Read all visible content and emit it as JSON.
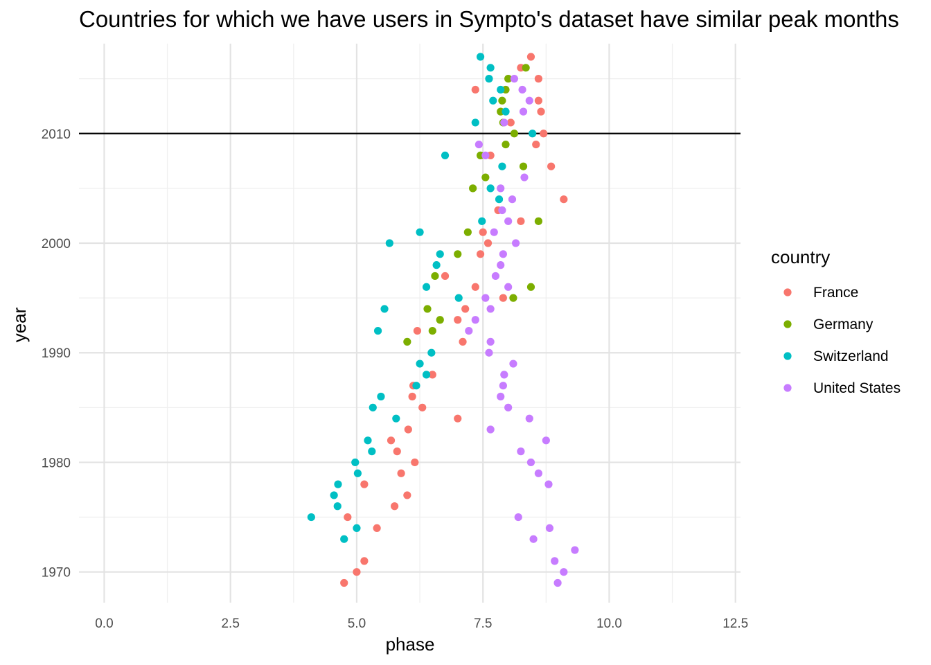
{
  "chart_data": {
    "type": "scatter",
    "title": "Countries for which we have users in Sympto's dataset have similar peak months",
    "xlabel": "phase",
    "ylabel": "year",
    "xlim": [
      -0.5,
      12.6
    ],
    "ylim": [
      1967.2,
      2018.2
    ],
    "x_ticks": [
      "0.0",
      "2.5",
      "5.0",
      "7.5",
      "10.0",
      "12.5"
    ],
    "x_tick_values": [
      0,
      2.5,
      5,
      7.5,
      10,
      12.5
    ],
    "y_ticks": [
      "1970",
      "1980",
      "1990",
      "2000",
      "2010"
    ],
    "y_tick_values": [
      1970,
      1980,
      1990,
      2000,
      2010
    ],
    "grid": true,
    "reference_line": {
      "orientation": "horizontal",
      "y": 2010,
      "color": "#000000"
    },
    "legend": {
      "title": "country",
      "position": "right"
    },
    "series": [
      {
        "name": "France",
        "color": "#F8766D",
        "points": [
          [
            4.75,
            1969
          ],
          [
            5.0,
            1970
          ],
          [
            5.15,
            1971
          ],
          [
            5.4,
            1974
          ],
          [
            4.82,
            1975
          ],
          [
            5.75,
            1976
          ],
          [
            6.0,
            1977
          ],
          [
            5.15,
            1978
          ],
          [
            5.88,
            1979
          ],
          [
            6.15,
            1980
          ],
          [
            5.8,
            1981
          ],
          [
            5.68,
            1982
          ],
          [
            6.02,
            1983
          ],
          [
            7.0,
            1984
          ],
          [
            6.3,
            1985
          ],
          [
            6.1,
            1986
          ],
          [
            6.12,
            1987
          ],
          [
            6.5,
            1988
          ],
          [
            7.1,
            1991
          ],
          [
            6.2,
            1992
          ],
          [
            7.0,
            1993
          ],
          [
            7.15,
            1994
          ],
          [
            7.9,
            1995
          ],
          [
            7.35,
            1996
          ],
          [
            6.75,
            1997
          ],
          [
            7.45,
            1999
          ],
          [
            7.6,
            2000
          ],
          [
            7.5,
            2001
          ],
          [
            8.25,
            2002
          ],
          [
            7.8,
            2003
          ],
          [
            9.1,
            2004
          ],
          [
            8.85,
            2007
          ],
          [
            7.65,
            2008
          ],
          [
            8.55,
            2009
          ],
          [
            8.7,
            2010
          ],
          [
            8.05,
            2011
          ],
          [
            8.65,
            2012
          ],
          [
            8.6,
            2013
          ],
          [
            7.35,
            2014
          ],
          [
            8.6,
            2015
          ],
          [
            8.25,
            2016
          ],
          [
            8.45,
            2017
          ]
        ]
      },
      {
        "name": "Germany",
        "color": "#7CAE00",
        "points": [
          [
            6.0,
            1991
          ],
          [
            6.5,
            1992
          ],
          [
            6.65,
            1993
          ],
          [
            6.4,
            1994
          ],
          [
            8.1,
            1995
          ],
          [
            8.45,
            1996
          ],
          [
            6.55,
            1997
          ],
          [
            7.0,
            1999
          ],
          [
            7.2,
            2001
          ],
          [
            8.6,
            2002
          ],
          [
            7.3,
            2005
          ],
          [
            7.55,
            2006
          ],
          [
            8.3,
            2007
          ],
          [
            7.45,
            2008
          ],
          [
            7.95,
            2009
          ],
          [
            8.12,
            2010
          ],
          [
            7.9,
            2011
          ],
          [
            7.85,
            2012
          ],
          [
            7.88,
            2013
          ],
          [
            7.95,
            2014
          ],
          [
            8.0,
            2015
          ],
          [
            8.35,
            2016
          ]
        ]
      },
      {
        "name": "Switzerland",
        "color": "#00BFC4",
        "points": [
          [
            4.75,
            1973
          ],
          [
            5.0,
            1974
          ],
          [
            4.1,
            1975
          ],
          [
            4.62,
            1976
          ],
          [
            4.55,
            1977
          ],
          [
            4.63,
            1978
          ],
          [
            5.02,
            1979
          ],
          [
            4.97,
            1980
          ],
          [
            5.3,
            1981
          ],
          [
            5.22,
            1982
          ],
          [
            5.78,
            1984
          ],
          [
            5.32,
            1985
          ],
          [
            5.48,
            1986
          ],
          [
            6.18,
            1987
          ],
          [
            6.38,
            1988
          ],
          [
            6.25,
            1989
          ],
          [
            6.48,
            1990
          ],
          [
            5.42,
            1992
          ],
          [
            5.55,
            1994
          ],
          [
            7.02,
            1995
          ],
          [
            6.38,
            1996
          ],
          [
            6.58,
            1998
          ],
          [
            6.65,
            1999
          ],
          [
            5.65,
            2000
          ],
          [
            6.25,
            2001
          ],
          [
            7.48,
            2002
          ],
          [
            7.82,
            2004
          ],
          [
            7.65,
            2005
          ],
          [
            7.88,
            2007
          ],
          [
            6.75,
            2008
          ],
          [
            8.48,
            2010
          ],
          [
            7.35,
            2011
          ],
          [
            7.95,
            2012
          ],
          [
            7.7,
            2013
          ],
          [
            7.85,
            2014
          ],
          [
            7.62,
            2015
          ],
          [
            7.65,
            2016
          ],
          [
            7.45,
            2017
          ]
        ]
      },
      {
        "name": "United States",
        "color": "#C77CFF",
        "points": [
          [
            8.98,
            1969
          ],
          [
            9.1,
            1970
          ],
          [
            8.92,
            1971
          ],
          [
            9.32,
            1972
          ],
          [
            8.5,
            1973
          ],
          [
            8.82,
            1974
          ],
          [
            8.2,
            1975
          ],
          [
            8.8,
            1978
          ],
          [
            8.6,
            1979
          ],
          [
            8.45,
            1980
          ],
          [
            8.25,
            1981
          ],
          [
            8.75,
            1982
          ],
          [
            7.65,
            1983
          ],
          [
            8.42,
            1984
          ],
          [
            8.0,
            1985
          ],
          [
            7.85,
            1986
          ],
          [
            7.9,
            1987
          ],
          [
            7.92,
            1988
          ],
          [
            8.1,
            1989
          ],
          [
            7.62,
            1990
          ],
          [
            7.65,
            1991
          ],
          [
            7.22,
            1992
          ],
          [
            7.35,
            1993
          ],
          [
            7.65,
            1994
          ],
          [
            7.55,
            1995
          ],
          [
            8.0,
            1996
          ],
          [
            7.75,
            1997
          ],
          [
            7.85,
            1998
          ],
          [
            7.9,
            1999
          ],
          [
            8.15,
            2000
          ],
          [
            7.72,
            2001
          ],
          [
            8.0,
            2002
          ],
          [
            7.88,
            2003
          ],
          [
            8.08,
            2004
          ],
          [
            7.85,
            2005
          ],
          [
            8.32,
            2006
          ],
          [
            7.55,
            2008
          ],
          [
            7.42,
            2009
          ],
          [
            7.92,
            2011
          ],
          [
            8.3,
            2012
          ],
          [
            8.42,
            2013
          ],
          [
            8.28,
            2014
          ],
          [
            8.12,
            2015
          ]
        ]
      }
    ]
  }
}
